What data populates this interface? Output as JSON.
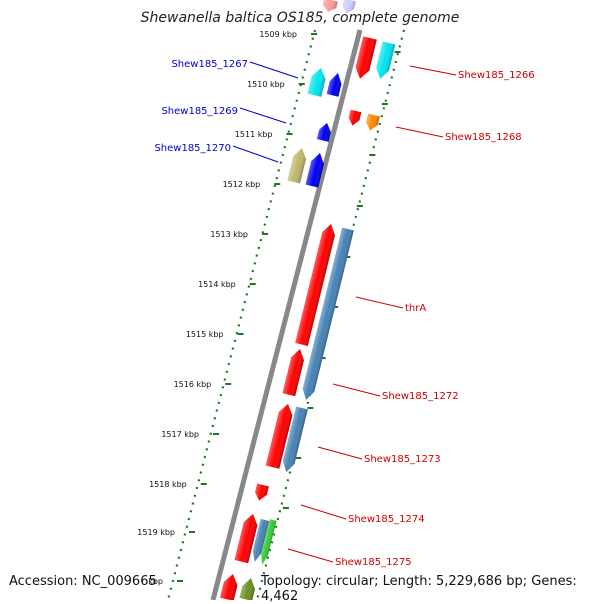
{
  "title": "Shewanella baltica OS185, complete genome",
  "accession": "Accession: NC_009665",
  "topology": "Topology: circular; Length: 5,229,686 bp; Genes: 4,462",
  "colors": {
    "backbone": "#888888",
    "ticks": "#1b7a1b",
    "forward_label": "#0000cc",
    "reverse_label": "#cc0000",
    "red": "#ff0000",
    "cyan": "#00e5ee",
    "blue": "#0000ee",
    "orange": "#ff8800",
    "khaki": "#bdb76b",
    "steelblue": "#4682b4",
    "green": "#33cc33",
    "olive": "#6b8e23"
  },
  "scale": {
    "unit": "kbp",
    "ticks": [
      "1509 kbp",
      "1510 kbp",
      "1511 kbp",
      "1512 kbp",
      "1513 kbp",
      "1514 kbp",
      "1515 kbp",
      "1516 kbp",
      "1517 kbp",
      "1518 kbp",
      "1519 kbp",
      "kbp"
    ]
  },
  "labels": {
    "forward": [
      "Shew185_1267",
      "Shew185_1269",
      "Shew185_1270"
    ],
    "reverse": [
      "Shew185_1266",
      "Shew185_1268",
      "thrA",
      "Shew185_1272",
      "Shew185_1273",
      "Shew185_1274",
      "Shew185_1275"
    ]
  }
}
